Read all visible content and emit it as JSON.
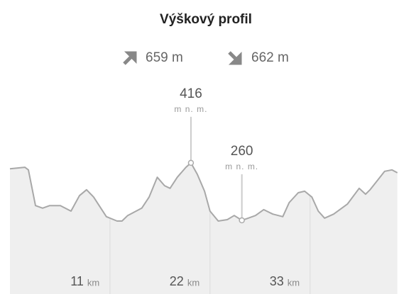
{
  "chart_data": {
    "type": "area",
    "title": "Výškový profil",
    "stats": {
      "ascent": 659,
      "descent": 662,
      "unit": "m"
    },
    "x_unit": "km",
    "elevation_unit": "m n. m.",
    "x": [
      0,
      1.64,
      2.03,
      2.81,
      3.59,
      4.37,
      5.54,
      6.71,
      7.64,
      8.42,
      9.2,
      10.6,
      11.78,
      12.32,
      12.95,
      14.5,
      15.3,
      16.2,
      17.0,
      17.6,
      18.4,
      19.35,
      19.9,
      20.6,
      21.4,
      22.0,
      22.9,
      23.9,
      24.66,
      25.5,
      26.2,
      27.0,
      27.9,
      28.9,
      30.0,
      30.7,
      31.7,
      32.4,
      33.2,
      33.9,
      34.6,
      35.6,
      37.1,
      38.4,
      39.1,
      39.6,
      41.2,
      42.0,
      42.6
    ],
    "values": [
      400,
      404,
      397,
      300,
      293,
      300,
      300,
      285,
      327,
      343,
      323,
      270,
      258,
      258,
      273,
      293,
      323,
      377,
      354,
      347,
      377,
      404,
      416,
      385,
      339,
      285,
      258,
      262,
      273,
      260,
      266,
      273,
      289,
      277,
      270,
      308,
      335,
      339,
      323,
      285,
      266,
      277,
      304,
      347,
      331,
      343,
      393,
      397,
      389
    ],
    "line_color": "#a8a8a8",
    "fill_color": "#efefef",
    "xlim": [
      0,
      42.7
    ],
    "ylim": [
      60,
      560
    ],
    "xticks": [
      11,
      22,
      33
    ],
    "annotations": [
      {
        "x": 19.9,
        "value": 416
      },
      {
        "x": 25.5,
        "value": 260
      }
    ]
  }
}
